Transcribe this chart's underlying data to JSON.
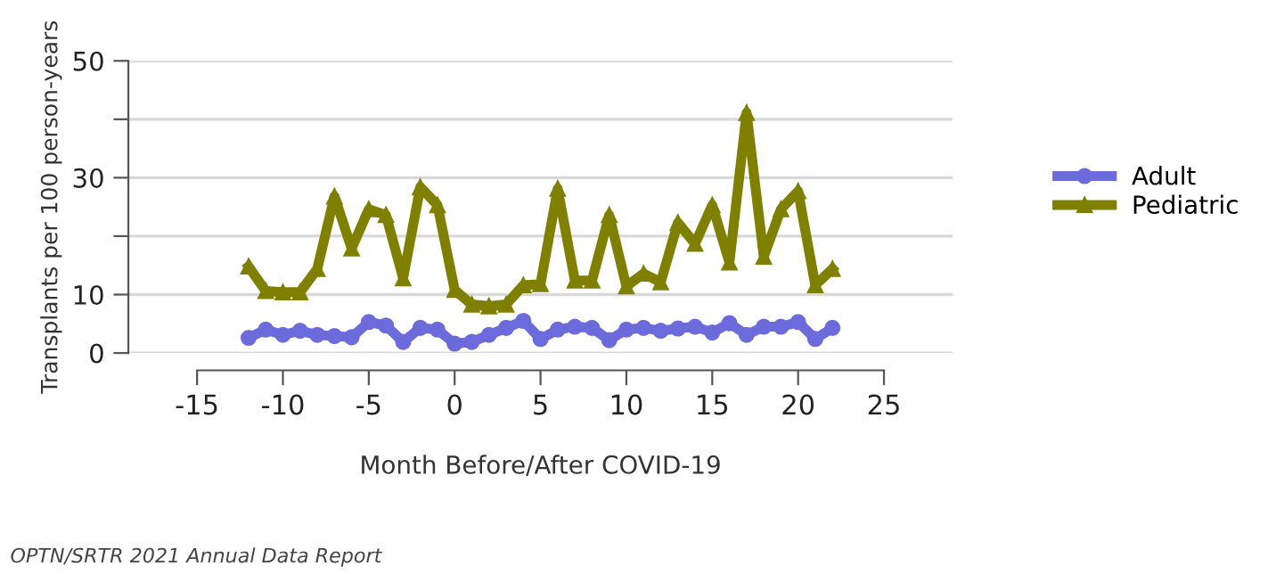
{
  "chart_data": {
    "type": "line",
    "xlabel": "Month Before/After COVID-19",
    "ylabel": "Transplants per 100 person-years",
    "x": [
      -12,
      -11,
      -10,
      -9,
      -8,
      -7,
      -6,
      -5,
      -4,
      -3,
      -2,
      -1,
      0,
      1,
      2,
      3,
      4,
      5,
      6,
      7,
      8,
      9,
      10,
      11,
      12,
      13,
      14,
      15,
      16,
      17,
      18,
      19,
      20,
      21,
      22
    ],
    "series": [
      {
        "name": "Adult",
        "color": "#6b6bdc",
        "marker": "circle",
        "values": [
          2.6,
          4.0,
          3.1,
          3.8,
          3.1,
          2.9,
          2.7,
          5.3,
          4.7,
          1.9,
          4.3,
          4.0,
          1.6,
          1.9,
          3.1,
          4.3,
          5.5,
          2.4,
          4.0,
          4.5,
          4.3,
          2.2,
          4.0,
          4.3,
          3.8,
          4.2,
          4.5,
          3.5,
          5.1,
          3.1,
          4.5,
          4.5,
          5.3,
          2.4,
          4.3
        ]
      },
      {
        "name": "Pediatric",
        "color": "#7f7f00",
        "marker": "triangle",
        "values": [
          14.8,
          10.6,
          10.4,
          10.4,
          14.4,
          26.8,
          17.9,
          24.6,
          23.6,
          12.8,
          28.4,
          25.3,
          10.8,
          8.3,
          8.0,
          8.3,
          11.6,
          11.8,
          28.1,
          12.4,
          12.4,
          23.6,
          11.4,
          13.6,
          12.1,
          22.3,
          18.7,
          25.3,
          15.5,
          41.1,
          16.5,
          24.6,
          27.7,
          11.6,
          14.4
        ]
      }
    ],
    "xlim": [
      -19,
      29
    ],
    "xticks": [
      -15,
      -10,
      -5,
      0,
      5,
      10,
      15,
      20,
      25
    ],
    "ylim": [
      0,
      50
    ],
    "yticks": [
      0,
      10,
      {
        "value": 20,
        "label": null
      },
      30,
      {
        "value": 40,
        "label": null
      },
      50
    ],
    "grid": "y",
    "legend": "right",
    "annotations": [
      "OPTN/SRTR 2021 Annual Data Report"
    ]
  }
}
